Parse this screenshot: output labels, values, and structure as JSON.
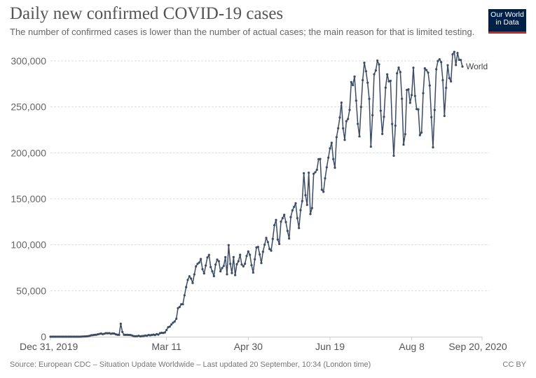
{
  "header": {
    "title": "Daily new confirmed COVID-19 cases",
    "subtitle": "The number of confirmed cases is lower than the number of actual cases; the main reason for that is limited testing.",
    "logo_line1": "Our World",
    "logo_line2": "in Data"
  },
  "footer": {
    "source": "Source: European CDC – Situation Update Worldwide – Last updated 20 September, 10:34 (London time)",
    "license": "CC BY"
  },
  "colors": {
    "series": "#3c4c64",
    "grid": "#dddddd",
    "logo_bg": "#002147",
    "logo_accent": "#ce261e"
  },
  "chart_data": {
    "type": "line",
    "title": "Daily new confirmed COVID-19 cases",
    "subtitle": "The number of confirmed cases is lower than the number of actual cases; the main reason for that is limited testing.",
    "xlabel": "",
    "ylabel": "",
    "x_start": "2019-12-31",
    "x_end": "2020-09-20",
    "xlim_days": [
      0,
      264
    ],
    "ylim": [
      0,
      300000
    ],
    "grid": true,
    "yticks": [
      {
        "value": 0,
        "label": "0"
      },
      {
        "value": 50000,
        "label": "50,000"
      },
      {
        "value": 100000,
        "label": "100,000"
      },
      {
        "value": 150000,
        "label": "150,000"
      },
      {
        "value": 200000,
        "label": "200,000"
      },
      {
        "value": 250000,
        "label": "250,000"
      },
      {
        "value": 300000,
        "label": "300,000"
      }
    ],
    "xticks": [
      {
        "day": 0,
        "label": "Dec 31, 2019"
      },
      {
        "day": 71,
        "label": "Mar 11"
      },
      {
        "day": 121,
        "label": "Apr 30"
      },
      {
        "day": 171,
        "label": "Jun 19"
      },
      {
        "day": 221,
        "label": "Aug 8"
      },
      {
        "day": 264,
        "label": "Sep 20, 2020"
      }
    ],
    "legend": "end-of-line label",
    "series": [
      {
        "name": "World",
        "values": [
          0,
          0,
          0,
          0,
          0,
          0,
          0,
          0,
          0,
          0,
          0,
          0,
          0,
          0,
          0,
          0,
          0,
          0,
          0,
          100,
          200,
          300,
          400,
          600,
          1000,
          1500,
          1700,
          2000,
          2100,
          2600,
          3000,
          3400,
          2800,
          3300,
          3800,
          3700,
          3800,
          3200,
          3500,
          3400,
          2600,
          2100,
          2000,
          14100,
          5200,
          2100,
          2000,
          2000,
          1900,
          1800,
          1300,
          600,
          500,
          600,
          1000,
          400,
          700,
          800,
          1300,
          1100,
          1800,
          1500,
          1900,
          2200,
          1800,
          2800,
          2300,
          3800,
          4200,
          4100,
          4600,
          7300,
          10300,
          11000,
          13300,
          15200,
          16600,
          19500,
          31000,
          32300,
          35300,
          35300,
          45000,
          53900,
          61800,
          65700,
          63200,
          58400,
          67800,
          76400,
          79300,
          80600,
          84500,
          73500,
          68800,
          77400,
          86200,
          89000,
          75800,
          71100,
          65900,
          78400,
          83900,
          82100,
          71100,
          74600,
          77000,
          86500,
          67900,
          99600,
          79300,
          69200,
          86600,
          67000,
          78800,
          82100,
          89100,
          78500,
          76500,
          79400,
          87800,
          92700,
          89100,
          77800,
          69800,
          84200,
          97100,
          97700,
          89600,
          80100,
          92400,
          100100,
          107500,
          102900,
          95400,
          93600,
          106400,
          121300,
          127000,
          105700,
          100900,
          125200,
          128900,
          132600,
          124700,
          115100,
          106800,
          130100,
          137400,
          141200,
          145200,
          129000,
          118200,
          137600,
          147500,
          177800,
          153900,
          143400,
          178400,
          133400,
          139900,
          177200,
          178900,
          181600,
          193000,
          193300,
          159900,
          157600,
          172300,
          184300,
          194800,
          204800,
          210900,
          193200,
          183800,
          217000,
          226700,
          238400,
          254600,
          226600,
          214100,
          234400,
          236800,
          246700,
          277000,
          273600,
          283000,
          256800,
          231500,
          217900,
          249900,
          279100,
          298000,
          288800,
          276300,
          258700,
          206700,
          240900,
          285500,
          289600,
          300300,
          296200,
          245800,
          220500,
          239200,
          270900,
          285400,
          277700,
          278300,
          231400,
          196800,
          229600,
          286500,
          292700,
          287800,
          258800,
          208900,
          220300,
          268400,
          269100,
          254400,
          262900,
          292600,
          261900,
          247600,
          247300,
          219200,
          222100,
          264900,
          291900,
          290000,
          287300,
          273300,
          238800,
          206000,
          246600,
          290900,
          299900,
          301700,
          298700,
          279100,
          240100,
          270700,
          295300,
          281200,
          277700,
          307200,
          309800,
          295500,
          308600,
          301200,
          301000,
          293800
        ],
        "end_label": "World"
      }
    ]
  }
}
